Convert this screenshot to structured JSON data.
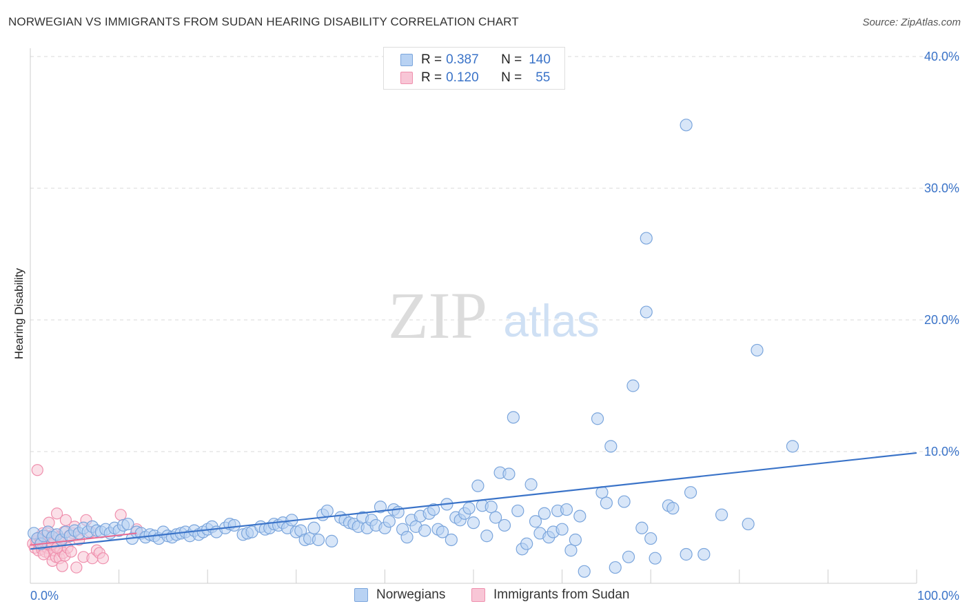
{
  "title": "NORWEGIAN VS IMMIGRANTS FROM SUDAN HEARING DISABILITY CORRELATION CHART",
  "source": "Source: ZipAtlas.com",
  "watermark": {
    "zip": "ZIP",
    "atlas": "atlas"
  },
  "colors": {
    "blue_fill": "#b8d2f3",
    "blue_stroke": "#7aa5dc",
    "blue_line": "#3a73c8",
    "pink_fill": "#f8c6d6",
    "pink_stroke": "#ef8fad",
    "pink_line": "#e86a93",
    "grid": "#d9d9d9",
    "tick_label": "#3a73c8"
  },
  "legend": {
    "rows": [
      {
        "r_label": "R =",
        "r_value": "0.387",
        "n_label": "N =",
        "n_value": "140"
      },
      {
        "r_label": "R =",
        "r_value": "0.120",
        "n_label": "N =",
        "n_value": "55"
      }
    ]
  },
  "chart_data": {
    "type": "scatter",
    "title": "NORWEGIAN VS IMMIGRANTS FROM SUDAN HEARING DISABILITY CORRELATION CHART",
    "xlabel": "",
    "ylabel": "Hearing Disability",
    "xlim": [
      0,
      100
    ],
    "ylim": [
      0,
      42
    ],
    "x_tick_labels": [
      {
        "value": 0,
        "label": "0.0%"
      },
      {
        "value": 100,
        "label": "100.0%"
      }
    ],
    "y_tick_labels": [
      {
        "value": 10,
        "label": "10.0%"
      },
      {
        "value": 20,
        "label": "20.0%"
      },
      {
        "value": 30,
        "label": "30.0%"
      },
      {
        "value": 40,
        "label": "40.0%"
      }
    ],
    "series": [
      {
        "name": "Norwegians",
        "r": 0.387,
        "n": 140,
        "trend": {
          "x": [
            0,
            100
          ],
          "y": [
            2.6,
            9.9
          ]
        },
        "points": [
          [
            0.4,
            3.8
          ],
          [
            0.8,
            3.4
          ],
          [
            1.2,
            3.0
          ],
          [
            1.5,
            3.6
          ],
          [
            2.0,
            3.9
          ],
          [
            2.5,
            3.5
          ],
          [
            3.0,
            3.7
          ],
          [
            3.5,
            3.3
          ],
          [
            4.0,
            3.9
          ],
          [
            4.5,
            3.6
          ],
          [
            5.0,
            4.0
          ],
          [
            5.5,
            3.8
          ],
          [
            6.0,
            4.2
          ],
          [
            6.5,
            3.9
          ],
          [
            7.0,
            4.3
          ],
          [
            7.5,
            4.0
          ],
          [
            8.0,
            3.9
          ],
          [
            8.5,
            4.1
          ],
          [
            9.0,
            3.8
          ],
          [
            9.5,
            4.2
          ],
          [
            10.0,
            4.0
          ],
          [
            10.5,
            4.4
          ],
          [
            11.0,
            4.5
          ],
          [
            11.5,
            3.4
          ],
          [
            12.0,
            3.9
          ],
          [
            12.5,
            3.8
          ],
          [
            13.0,
            3.5
          ],
          [
            13.5,
            3.7
          ],
          [
            14.0,
            3.6
          ],
          [
            14.5,
            3.4
          ],
          [
            15.0,
            3.9
          ],
          [
            15.5,
            3.6
          ],
          [
            16.0,
            3.5
          ],
          [
            16.5,
            3.7
          ],
          [
            17.0,
            3.8
          ],
          [
            17.5,
            3.9
          ],
          [
            18.0,
            3.6
          ],
          [
            18.5,
            4.0
          ],
          [
            19.0,
            3.7
          ],
          [
            19.5,
            3.9
          ],
          [
            20.0,
            4.1
          ],
          [
            20.5,
            4.3
          ],
          [
            21.0,
            3.9
          ],
          [
            22.0,
            4.2
          ],
          [
            22.5,
            4.5
          ],
          [
            23.0,
            4.4
          ],
          [
            24.0,
            3.7
          ],
          [
            24.5,
            3.8
          ],
          [
            25.0,
            3.9
          ],
          [
            26.0,
            4.3
          ],
          [
            26.5,
            4.1
          ],
          [
            27.0,
            4.2
          ],
          [
            27.5,
            4.5
          ],
          [
            28.0,
            4.4
          ],
          [
            28.5,
            4.6
          ],
          [
            29.0,
            4.2
          ],
          [
            29.5,
            4.8
          ],
          [
            30.0,
            3.9
          ],
          [
            30.5,
            4.0
          ],
          [
            31.0,
            3.3
          ],
          [
            31.5,
            3.4
          ],
          [
            32.0,
            4.2
          ],
          [
            32.5,
            3.3
          ],
          [
            33.0,
            5.2
          ],
          [
            33.5,
            5.5
          ],
          [
            34.0,
            3.2
          ],
          [
            35.0,
            5.0
          ],
          [
            35.5,
            4.8
          ],
          [
            36.0,
            4.6
          ],
          [
            36.5,
            4.5
          ],
          [
            37.0,
            4.3
          ],
          [
            37.5,
            5.0
          ],
          [
            38.0,
            4.2
          ],
          [
            38.5,
            4.8
          ],
          [
            39.0,
            4.4
          ],
          [
            39.5,
            5.8
          ],
          [
            40.0,
            4.2
          ],
          [
            40.5,
            4.7
          ],
          [
            41.0,
            5.6
          ],
          [
            41.5,
            5.4
          ],
          [
            42.0,
            4.1
          ],
          [
            42.5,
            3.5
          ],
          [
            43.0,
            4.8
          ],
          [
            43.5,
            4.3
          ],
          [
            44.0,
            5.1
          ],
          [
            44.5,
            4.0
          ],
          [
            45.0,
            5.3
          ],
          [
            45.5,
            5.6
          ],
          [
            46.0,
            4.1
          ],
          [
            46.5,
            3.9
          ],
          [
            47.0,
            6.0
          ],
          [
            47.5,
            3.3
          ],
          [
            48.0,
            5.0
          ],
          [
            48.5,
            4.8
          ],
          [
            49.0,
            5.3
          ],
          [
            49.5,
            5.7
          ],
          [
            50.0,
            4.6
          ],
          [
            50.5,
            7.4
          ],
          [
            51.0,
            5.9
          ],
          [
            51.5,
            3.6
          ],
          [
            52.0,
            5.8
          ],
          [
            52.5,
            5.0
          ],
          [
            53.0,
            8.4
          ],
          [
            53.5,
            4.4
          ],
          [
            54.0,
            8.3
          ],
          [
            54.5,
            12.6
          ],
          [
            55.0,
            5.5
          ],
          [
            55.5,
            2.6
          ],
          [
            56.0,
            3.0
          ],
          [
            56.5,
            7.5
          ],
          [
            57.0,
            4.7
          ],
          [
            57.5,
            3.8
          ],
          [
            58.0,
            5.3
          ],
          [
            58.5,
            3.5
          ],
          [
            59.0,
            3.9
          ],
          [
            59.5,
            5.5
          ],
          [
            60.0,
            4.1
          ],
          [
            60.5,
            5.6
          ],
          [
            61.0,
            2.5
          ],
          [
            61.5,
            3.3
          ],
          [
            62.0,
            5.1
          ],
          [
            62.5,
            0.9
          ],
          [
            64.0,
            12.5
          ],
          [
            64.5,
            6.9
          ],
          [
            65.0,
            6.1
          ],
          [
            65.5,
            10.4
          ],
          [
            66.0,
            1.2
          ],
          [
            67.0,
            6.2
          ],
          [
            67.5,
            2.0
          ],
          [
            68.0,
            15.0
          ],
          [
            69.0,
            4.2
          ],
          [
            69.5,
            20.6
          ],
          [
            70.0,
            3.4
          ],
          [
            70.5,
            1.9
          ],
          [
            72.0,
            5.9
          ],
          [
            72.5,
            5.7
          ],
          [
            74.0,
            2.2
          ],
          [
            74.5,
            6.9
          ],
          [
            76.0,
            2.2
          ],
          [
            74.0,
            34.8
          ],
          [
            69.5,
            26.2
          ],
          [
            78.0,
            5.2
          ],
          [
            81.0,
            4.5
          ],
          [
            82.0,
            17.7
          ],
          [
            86.0,
            10.4
          ]
        ]
      },
      {
        "name": "Immigrants from Sudan",
        "r": 0.12,
        "n": 55,
        "trend": {
          "x": [
            0,
            12
          ],
          "y": [
            2.9,
            3.8
          ]
        },
        "points": [
          [
            0.3,
            3.0
          ],
          [
            0.5,
            2.7
          ],
          [
            0.7,
            3.2
          ],
          [
            0.9,
            2.5
          ],
          [
            1.0,
            3.5
          ],
          [
            1.1,
            2.9
          ],
          [
            1.2,
            3.3
          ],
          [
            1.3,
            2.6
          ],
          [
            1.4,
            3.8
          ],
          [
            1.5,
            2.8
          ],
          [
            1.6,
            3.1
          ],
          [
            1.7,
            2.4
          ],
          [
            1.8,
            3.6
          ],
          [
            1.9,
            2.7
          ],
          [
            2.0,
            3.0
          ],
          [
            2.1,
            4.6
          ],
          [
            2.2,
            2.2
          ],
          [
            2.3,
            3.4
          ],
          [
            2.4,
            2.9
          ],
          [
            2.5,
            1.7
          ],
          [
            2.6,
            3.7
          ],
          [
            2.7,
            2.5
          ],
          [
            2.8,
            3.2
          ],
          [
            2.9,
            2.0
          ],
          [
            3.0,
            5.3
          ],
          [
            3.1,
            2.8
          ],
          [
            3.2,
            3.5
          ],
          [
            3.3,
            1.9
          ],
          [
            3.4,
            2.6
          ],
          [
            3.5,
            3.1
          ],
          [
            3.6,
            1.3
          ],
          [
            3.7,
            2.3
          ],
          [
            3.8,
            3.9
          ],
          [
            3.9,
            2.1
          ],
          [
            4.0,
            4.8
          ],
          [
            4.2,
            2.7
          ],
          [
            4.4,
            3.6
          ],
          [
            4.6,
            2.4
          ],
          [
            4.8,
            3.8
          ],
          [
            5.0,
            4.3
          ],
          [
            5.2,
            1.2
          ],
          [
            5.5,
            3.3
          ],
          [
            6.0,
            2.0
          ],
          [
            6.3,
            4.8
          ],
          [
            6.8,
            3.9
          ],
          [
            7.0,
            1.9
          ],
          [
            7.5,
            2.5
          ],
          [
            7.8,
            2.3
          ],
          [
            8.2,
            1.9
          ],
          [
            12.0,
            4.1
          ],
          [
            10.2,
            5.2
          ],
          [
            0.8,
            8.6
          ],
          [
            2.5,
            3.0
          ],
          [
            1.5,
            2.2
          ],
          [
            3.0,
            2.7
          ]
        ]
      }
    ]
  },
  "bottom_legend": {
    "items": [
      "Norwegians",
      "Immigrants from Sudan"
    ]
  }
}
